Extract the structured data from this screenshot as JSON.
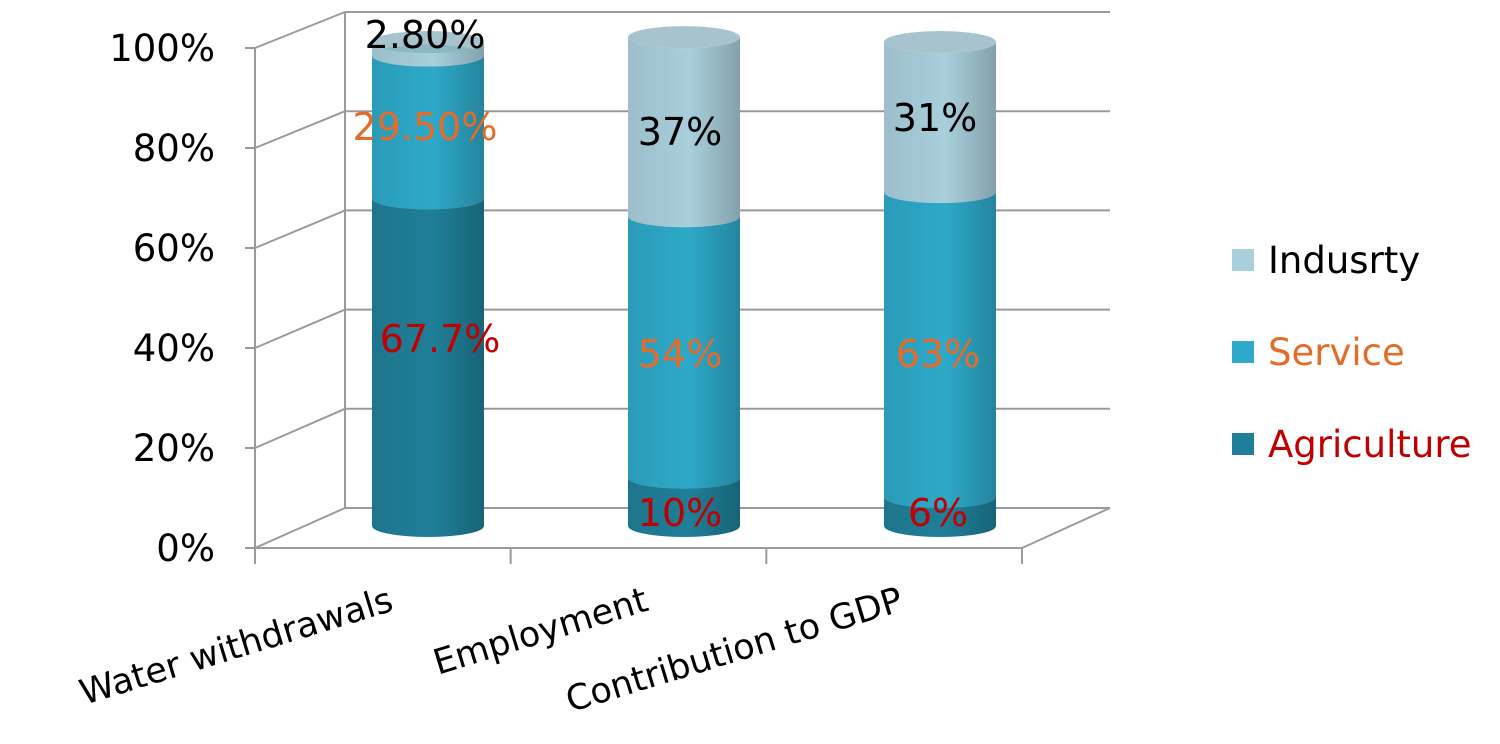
{
  "chart_data": {
    "type": "bar",
    "stacked": true,
    "three_d": true,
    "categories": [
      "Water withdrawals",
      "Employment",
      "Contribution to GDP"
    ],
    "series": [
      {
        "name": "Agriculture",
        "values": [
          67.7,
          10,
          6
        ],
        "labels": [
          "67.7%",
          "10%",
          "6%"
        ],
        "color": "#1f7f98",
        "label_color": "#c00000"
      },
      {
        "name": "Service",
        "values": [
          29.5,
          54,
          63
        ],
        "labels": [
          "29.50%",
          "54%",
          "63%"
        ],
        "color": "#2ea9c9",
        "label_color": "#e46c2a"
      },
      {
        "name": "Indusrty",
        "values": [
          2.8,
          37,
          31
        ],
        "labels": [
          "2.80%",
          "37%",
          "31%"
        ],
        "color": "#a9cfdc",
        "label_color": "#000000"
      }
    ],
    "ylim": [
      0,
      100
    ],
    "yticks": [
      "0%",
      "20%",
      "40%",
      "60%",
      "80%",
      "100%"
    ],
    "grid": true,
    "legend_position": "right"
  }
}
